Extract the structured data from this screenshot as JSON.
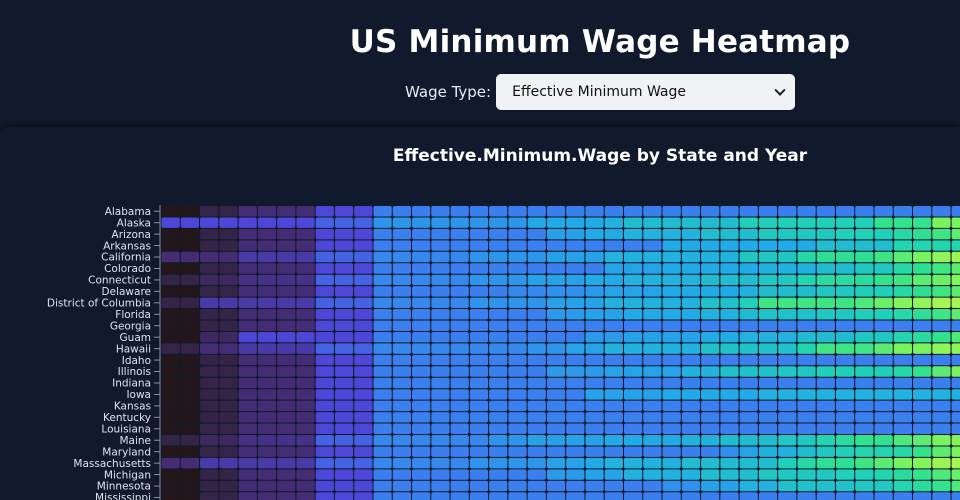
{
  "page": {
    "title": "US Minimum Wage Heatmap"
  },
  "controls": {
    "wage_type_label": "Wage Type:",
    "wage_type_value": "Effective Minimum Wage"
  },
  "chart_data": {
    "type": "heatmap",
    "title": "Effective.Minimum.Wage by State and Year",
    "states": [
      "Alabama",
      "Alaska",
      "Arizona",
      "Arkansas",
      "California",
      "Colorado",
      "Connecticut",
      "Delaware",
      "District of Columbia",
      "Florida",
      "Georgia",
      "Guam",
      "Hawaii",
      "Idaho",
      "Illinois",
      "Indiana",
      "Iowa",
      "Kansas",
      "Kentucky",
      "Louisiana",
      "Maine",
      "Maryland",
      "Massachusetts",
      "Michigan",
      "Minnesota",
      "Mississippi"
    ],
    "n_years": 42,
    "values": [
      [
        0.0,
        0.0,
        0.1,
        0.1,
        0.2,
        0.2,
        0.2,
        0.2,
        0.3,
        0.3,
        0.3,
        0.4,
        0.4,
        0.4,
        0.4,
        0.4,
        0.4,
        0.4,
        0.4,
        0.4,
        0.4,
        0.4,
        0.4,
        0.4,
        0.4,
        0.4,
        0.4,
        0.4,
        0.4,
        0.4,
        0.4,
        0.4,
        0.4,
        0.4,
        0.4,
        0.4,
        0.4,
        0.4,
        0.4,
        0.4,
        0.4,
        0.4
      ],
      [
        0.3,
        0.3,
        0.3,
        0.3,
        0.3,
        0.3,
        0.3,
        0.3,
        0.35,
        0.35,
        0.35,
        0.45,
        0.45,
        0.45,
        0.45,
        0.45,
        0.45,
        0.45,
        0.45,
        0.5,
        0.5,
        0.5,
        0.5,
        0.52,
        0.55,
        0.55,
        0.55,
        0.55,
        0.55,
        0.55,
        0.6,
        0.6,
        0.6,
        0.6,
        0.6,
        0.6,
        0.6,
        0.7,
        0.7,
        0.7,
        0.8,
        0.8
      ],
      [
        0.0,
        0.0,
        0.1,
        0.1,
        0.2,
        0.2,
        0.2,
        0.2,
        0.3,
        0.3,
        0.3,
        0.4,
        0.4,
        0.4,
        0.4,
        0.4,
        0.4,
        0.4,
        0.4,
        0.4,
        0.48,
        0.48,
        0.5,
        0.5,
        0.52,
        0.52,
        0.52,
        0.52,
        0.55,
        0.55,
        0.55,
        0.58,
        0.58,
        0.58,
        0.58,
        0.6,
        0.6,
        0.6,
        0.64,
        0.68,
        0.72,
        0.76
      ],
      [
        0.0,
        0.0,
        0.1,
        0.1,
        0.2,
        0.2,
        0.2,
        0.2,
        0.3,
        0.3,
        0.3,
        0.4,
        0.4,
        0.4,
        0.4,
        0.4,
        0.4,
        0.4,
        0.4,
        0.4,
        0.4,
        0.4,
        0.4,
        0.4,
        0.4,
        0.4,
        0.5,
        0.5,
        0.5,
        0.5,
        0.5,
        0.5,
        0.5,
        0.5,
        0.55,
        0.55,
        0.55,
        0.55,
        0.62,
        0.62,
        0.62,
        0.62
      ],
      [
        0.2,
        0.2,
        0.2,
        0.2,
        0.25,
        0.25,
        0.25,
        0.25,
        0.35,
        0.35,
        0.35,
        0.42,
        0.42,
        0.42,
        0.42,
        0.42,
        0.45,
        0.45,
        0.45,
        0.45,
        0.48,
        0.48,
        0.48,
        0.52,
        0.52,
        0.52,
        0.52,
        0.52,
        0.52,
        0.52,
        0.58,
        0.58,
        0.58,
        0.64,
        0.68,
        0.68,
        0.68,
        0.72,
        0.76,
        0.8,
        0.84,
        0.86
      ],
      [
        0.0,
        0.0,
        0.1,
        0.1,
        0.2,
        0.2,
        0.2,
        0.2,
        0.3,
        0.3,
        0.3,
        0.4,
        0.4,
        0.4,
        0.4,
        0.4,
        0.4,
        0.4,
        0.4,
        0.4,
        0.4,
        0.4,
        0.4,
        0.48,
        0.48,
        0.48,
        0.5,
        0.5,
        0.5,
        0.5,
        0.5,
        0.52,
        0.52,
        0.52,
        0.55,
        0.55,
        0.58,
        0.58,
        0.64,
        0.68,
        0.72,
        0.76
      ],
      [
        0.1,
        0.1,
        0.15,
        0.15,
        0.22,
        0.22,
        0.22,
        0.22,
        0.35,
        0.35,
        0.35,
        0.42,
        0.42,
        0.42,
        0.42,
        0.42,
        0.45,
        0.45,
        0.45,
        0.48,
        0.48,
        0.48,
        0.5,
        0.5,
        0.52,
        0.52,
        0.52,
        0.52,
        0.55,
        0.55,
        0.55,
        0.58,
        0.58,
        0.62,
        0.66,
        0.66,
        0.66,
        0.7,
        0.72,
        0.76,
        0.78,
        0.82
      ],
      [
        0.0,
        0.0,
        0.1,
        0.1,
        0.2,
        0.2,
        0.2,
        0.2,
        0.3,
        0.3,
        0.3,
        0.4,
        0.4,
        0.4,
        0.4,
        0.4,
        0.4,
        0.4,
        0.42,
        0.42,
        0.44,
        0.44,
        0.46,
        0.48,
        0.48,
        0.48,
        0.5,
        0.5,
        0.5,
        0.5,
        0.52,
        0.55,
        0.55,
        0.55,
        0.58,
        0.58,
        0.6,
        0.6,
        0.64,
        0.68,
        0.72,
        0.76
      ],
      [
        0.1,
        0.1,
        0.25,
        0.25,
        0.25,
        0.25,
        0.25,
        0.25,
        0.35,
        0.35,
        0.35,
        0.42,
        0.42,
        0.42,
        0.42,
        0.42,
        0.45,
        0.45,
        0.45,
        0.45,
        0.48,
        0.48,
        0.48,
        0.52,
        0.52,
        0.52,
        0.52,
        0.52,
        0.56,
        0.56,
        0.6,
        0.72,
        0.72,
        0.72,
        0.72,
        0.72,
        0.74,
        0.78,
        0.82,
        0.84,
        0.88,
        0.88
      ],
      [
        0.0,
        0.0,
        0.1,
        0.1,
        0.2,
        0.2,
        0.2,
        0.2,
        0.3,
        0.3,
        0.3,
        0.4,
        0.4,
        0.4,
        0.4,
        0.4,
        0.4,
        0.4,
        0.4,
        0.4,
        0.46,
        0.46,
        0.48,
        0.48,
        0.5,
        0.5,
        0.5,
        0.5,
        0.52,
        0.52,
        0.54,
        0.56,
        0.56,
        0.56,
        0.58,
        0.58,
        0.6,
        0.6,
        0.64,
        0.68,
        0.72,
        0.76
      ],
      [
        0.0,
        0.0,
        0.1,
        0.1,
        0.2,
        0.2,
        0.2,
        0.2,
        0.3,
        0.3,
        0.3,
        0.4,
        0.4,
        0.4,
        0.4,
        0.4,
        0.4,
        0.4,
        0.4,
        0.4,
        0.4,
        0.4,
        0.4,
        0.4,
        0.4,
        0.4,
        0.4,
        0.4,
        0.4,
        0.4,
        0.4,
        0.4,
        0.4,
        0.4,
        0.4,
        0.4,
        0.4,
        0.4,
        0.4,
        0.4,
        0.4,
        0.4
      ],
      [
        0.0,
        0.0,
        0.15,
        0.15,
        0.3,
        0.3,
        0.3,
        0.3,
        0.3,
        0.3,
        0.3,
        0.4,
        0.4,
        0.4,
        0.4,
        0.4,
        0.4,
        0.4,
        0.4,
        0.4,
        0.4,
        0.4,
        0.46,
        0.46,
        0.48,
        0.48,
        0.48,
        0.48,
        0.5,
        0.5,
        0.52,
        0.52,
        0.52,
        0.55,
        0.55,
        0.55,
        0.58,
        0.58,
        0.62,
        0.66,
        0.7,
        0.74
      ],
      [
        0.1,
        0.1,
        0.2,
        0.2,
        0.25,
        0.25,
        0.25,
        0.25,
        0.35,
        0.35,
        0.35,
        0.42,
        0.42,
        0.42,
        0.42,
        0.42,
        0.42,
        0.42,
        0.42,
        0.45,
        0.45,
        0.48,
        0.48,
        0.52,
        0.52,
        0.52,
        0.52,
        0.52,
        0.56,
        0.56,
        0.56,
        0.56,
        0.56,
        0.62,
        0.72,
        0.72,
        0.72,
        0.76,
        0.8,
        0.8,
        0.84,
        0.84
      ],
      [
        0.0,
        0.0,
        0.1,
        0.1,
        0.2,
        0.2,
        0.2,
        0.2,
        0.3,
        0.3,
        0.3,
        0.4,
        0.4,
        0.4,
        0.4,
        0.4,
        0.4,
        0.4,
        0.4,
        0.4,
        0.4,
        0.4,
        0.4,
        0.4,
        0.4,
        0.4,
        0.4,
        0.4,
        0.4,
        0.4,
        0.4,
        0.4,
        0.4,
        0.4,
        0.4,
        0.4,
        0.4,
        0.4,
        0.4,
        0.4,
        0.4,
        0.4
      ],
      [
        0.0,
        0.0,
        0.1,
        0.1,
        0.2,
        0.2,
        0.2,
        0.2,
        0.3,
        0.3,
        0.3,
        0.4,
        0.4,
        0.4,
        0.4,
        0.4,
        0.4,
        0.4,
        0.4,
        0.4,
        0.46,
        0.46,
        0.46,
        0.48,
        0.48,
        0.48,
        0.48,
        0.52,
        0.52,
        0.56,
        0.56,
        0.56,
        0.58,
        0.58,
        0.6,
        0.6,
        0.6,
        0.6,
        0.64,
        0.7,
        0.76,
        0.8
      ],
      [
        0.0,
        0.0,
        0.1,
        0.1,
        0.2,
        0.2,
        0.2,
        0.2,
        0.3,
        0.3,
        0.3,
        0.4,
        0.4,
        0.4,
        0.4,
        0.4,
        0.4,
        0.4,
        0.4,
        0.4,
        0.4,
        0.4,
        0.4,
        0.4,
        0.4,
        0.4,
        0.4,
        0.4,
        0.4,
        0.4,
        0.4,
        0.4,
        0.4,
        0.4,
        0.4,
        0.4,
        0.4,
        0.4,
        0.4,
        0.4,
        0.4,
        0.4
      ],
      [
        0.0,
        0.0,
        0.1,
        0.1,
        0.2,
        0.2,
        0.2,
        0.2,
        0.3,
        0.3,
        0.3,
        0.4,
        0.4,
        0.4,
        0.4,
        0.4,
        0.4,
        0.4,
        0.4,
        0.4,
        0.4,
        0.4,
        0.48,
        0.48,
        0.48,
        0.48,
        0.5,
        0.5,
        0.5,
        0.5,
        0.5,
        0.52,
        0.52,
        0.52,
        0.52,
        0.52,
        0.52,
        0.52,
        0.52,
        0.52,
        0.52,
        0.52
      ],
      [
        0.0,
        0.0,
        0.1,
        0.1,
        0.2,
        0.2,
        0.2,
        0.2,
        0.3,
        0.3,
        0.3,
        0.4,
        0.4,
        0.4,
        0.4,
        0.4,
        0.4,
        0.4,
        0.4,
        0.4,
        0.4,
        0.4,
        0.4,
        0.4,
        0.4,
        0.4,
        0.4,
        0.4,
        0.4,
        0.4,
        0.4,
        0.4,
        0.4,
        0.4,
        0.4,
        0.4,
        0.4,
        0.4,
        0.4,
        0.4,
        0.4,
        0.4
      ],
      [
        0.0,
        0.0,
        0.1,
        0.1,
        0.2,
        0.2,
        0.2,
        0.2,
        0.3,
        0.3,
        0.3,
        0.4,
        0.4,
        0.4,
        0.4,
        0.4,
        0.4,
        0.4,
        0.4,
        0.4,
        0.4,
        0.4,
        0.4,
        0.4,
        0.4,
        0.4,
        0.4,
        0.4,
        0.4,
        0.4,
        0.4,
        0.4,
        0.4,
        0.4,
        0.4,
        0.4,
        0.4,
        0.4,
        0.4,
        0.4,
        0.4,
        0.4
      ],
      [
        0.0,
        0.0,
        0.1,
        0.1,
        0.2,
        0.2,
        0.2,
        0.2,
        0.3,
        0.3,
        0.3,
        0.4,
        0.4,
        0.4,
        0.4,
        0.4,
        0.4,
        0.4,
        0.4,
        0.4,
        0.4,
        0.4,
        0.4,
        0.4,
        0.4,
        0.4,
        0.4,
        0.4,
        0.4,
        0.4,
        0.4,
        0.4,
        0.4,
        0.4,
        0.4,
        0.4,
        0.4,
        0.4,
        0.4,
        0.4,
        0.4,
        0.4
      ],
      [
        0.1,
        0.1,
        0.15,
        0.15,
        0.22,
        0.22,
        0.22,
        0.22,
        0.35,
        0.35,
        0.35,
        0.42,
        0.42,
        0.42,
        0.42,
        0.42,
        0.42,
        0.45,
        0.45,
        0.48,
        0.48,
        0.48,
        0.48,
        0.5,
        0.5,
        0.5,
        0.5,
        0.52,
        0.52,
        0.55,
        0.55,
        0.55,
        0.58,
        0.58,
        0.62,
        0.66,
        0.7,
        0.7,
        0.74,
        0.76,
        0.8,
        0.82
      ],
      [
        0.0,
        0.0,
        0.1,
        0.1,
        0.2,
        0.2,
        0.2,
        0.2,
        0.3,
        0.3,
        0.3,
        0.4,
        0.4,
        0.4,
        0.4,
        0.4,
        0.4,
        0.4,
        0.4,
        0.4,
        0.4,
        0.4,
        0.4,
        0.4,
        0.4,
        0.4,
        0.4,
        0.4,
        0.4,
        0.44,
        0.48,
        0.52,
        0.52,
        0.55,
        0.58,
        0.6,
        0.62,
        0.62,
        0.64,
        0.7,
        0.76,
        0.8
      ],
      [
        0.2,
        0.2,
        0.25,
        0.25,
        0.25,
        0.25,
        0.25,
        0.25,
        0.35,
        0.35,
        0.35,
        0.42,
        0.42,
        0.42,
        0.42,
        0.42,
        0.45,
        0.45,
        0.45,
        0.45,
        0.48,
        0.48,
        0.5,
        0.52,
        0.52,
        0.52,
        0.52,
        0.55,
        0.55,
        0.55,
        0.55,
        0.55,
        0.6,
        0.64,
        0.68,
        0.68,
        0.72,
        0.76,
        0.8,
        0.82,
        0.86,
        0.88
      ],
      [
        0.0,
        0.0,
        0.1,
        0.1,
        0.2,
        0.2,
        0.2,
        0.2,
        0.3,
        0.3,
        0.3,
        0.4,
        0.4,
        0.4,
        0.4,
        0.4,
        0.4,
        0.4,
        0.4,
        0.4,
        0.46,
        0.46,
        0.48,
        0.48,
        0.52,
        0.52,
        0.52,
        0.52,
        0.55,
        0.55,
        0.55,
        0.58,
        0.58,
        0.58,
        0.58,
        0.6,
        0.6,
        0.62,
        0.66,
        0.7,
        0.74,
        0.78
      ],
      [
        0.0,
        0.0,
        0.1,
        0.1,
        0.2,
        0.2,
        0.2,
        0.2,
        0.3,
        0.3,
        0.3,
        0.4,
        0.4,
        0.4,
        0.4,
        0.4,
        0.4,
        0.4,
        0.4,
        0.4,
        0.4,
        0.4,
        0.4,
        0.4,
        0.4,
        0.4,
        0.44,
        0.44,
        0.48,
        0.48,
        0.52,
        0.52,
        0.56,
        0.56,
        0.56,
        0.56,
        0.58,
        0.58,
        0.62,
        0.66,
        0.7,
        0.74
      ],
      [
        0.0,
        0.0,
        0.1,
        0.1,
        0.2,
        0.2,
        0.2,
        0.2,
        0.3,
        0.3,
        0.3,
        0.4,
        0.4,
        0.4,
        0.4,
        0.4,
        0.4,
        0.4,
        0.4,
        0.4,
        0.4,
        0.4,
        0.4,
        0.4,
        0.4,
        0.4,
        0.4,
        0.4,
        0.4,
        0.4,
        0.4,
        0.4,
        0.4,
        0.4,
        0.4,
        0.4,
        0.4,
        0.4,
        0.4,
        0.4,
        0.4,
        0.4
      ]
    ]
  }
}
